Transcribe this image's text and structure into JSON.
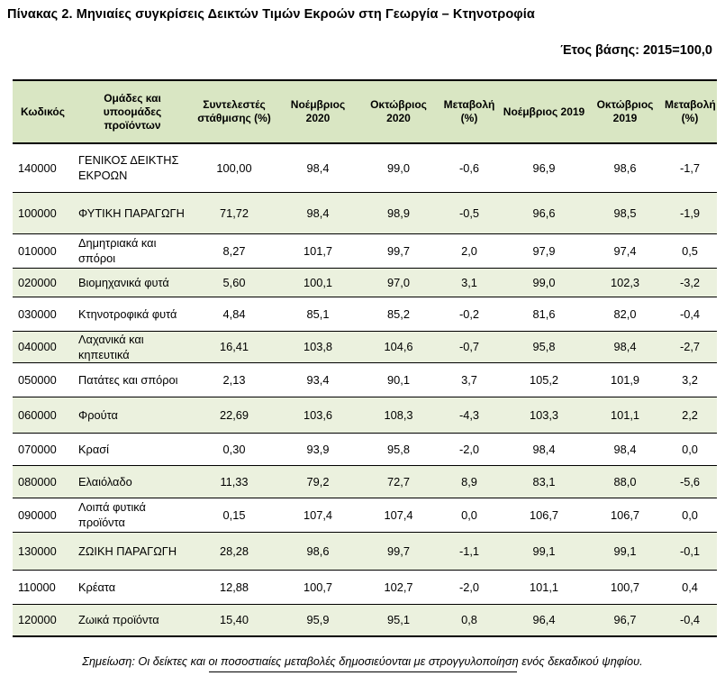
{
  "title": "Πίνακας 2. Μηνιαίες συγκρίσεις Δεικτών Τιμών Εκροών στη Γεωργία – Κτηνοτροφία",
  "base_year": "Έτος βάσης: 2015=100,0",
  "headers": {
    "code": "Κωδικός",
    "groups": "Ομάδες και υποομάδες προϊόντων",
    "weight": "Συντελεστές στάθμισης (%)",
    "nov2020": "Νοέμβριος 2020",
    "oct2020": "Οκτώβριος 2020",
    "change1": "Μεταβολή (%)",
    "nov2019": "Νοέμβριος 2019",
    "oct2019": "Οκτώβριος 2019",
    "change2": "Μεταβολή (%)"
  },
  "rows": [
    {
      "code": "140000",
      "name": "ΓΕΝΙΚΟΣ ΔΕΙΚΤΗΣ ΕΚΡΟΩΝ",
      "weight": "100,00",
      "nov2020": "98,4",
      "oct2020": "99,0",
      "chg1": "-0,6",
      "nov2019": "96,9",
      "oct2019": "98,6",
      "chg2": "-1,7"
    },
    {
      "code": "100000",
      "name": "ΦΥΤΙΚΗ ΠΑΡΑΓΩΓΗ",
      "weight": "71,72",
      "nov2020": "98,4",
      "oct2020": "98,9",
      "chg1": "-0,5",
      "nov2019": "96,6",
      "oct2019": "98,5",
      "chg2": "-1,9"
    },
    {
      "code": "010000",
      "name": "Δημητριακά και σπόροι",
      "weight": "8,27",
      "nov2020": "101,7",
      "oct2020": "99,7",
      "chg1": "2,0",
      "nov2019": "97,9",
      "oct2019": "97,4",
      "chg2": "0,5"
    },
    {
      "code": "020000",
      "name": "Βιομηχανικά φυτά",
      "weight": "5,60",
      "nov2020": "100,1",
      "oct2020": "97,0",
      "chg1": "3,1",
      "nov2019": "99,0",
      "oct2019": "102,3",
      "chg2": "-3,2"
    },
    {
      "code": "030000",
      "name": "Κτηνοτροφικά φυτά",
      "weight": "4,84",
      "nov2020": "85,1",
      "oct2020": "85,2",
      "chg1": "-0,2",
      "nov2019": "81,6",
      "oct2019": "82,0",
      "chg2": "-0,4"
    },
    {
      "code": "040000",
      "name": "Λαχανικά και κηπευτικά",
      "weight": "16,41",
      "nov2020": "103,8",
      "oct2020": "104,6",
      "chg1": "-0,7",
      "nov2019": "95,8",
      "oct2019": "98,4",
      "chg2": "-2,7"
    },
    {
      "code": "050000",
      "name": "Πατάτες και σπόροι",
      "weight": "2,13",
      "nov2020": "93,4",
      "oct2020": "90,1",
      "chg1": "3,7",
      "nov2019": "105,2",
      "oct2019": "101,9",
      "chg2": "3,2"
    },
    {
      "code": "060000",
      "name": "Φρούτα",
      "weight": "22,69",
      "nov2020": "103,6",
      "oct2020": "108,3",
      "chg1": "-4,3",
      "nov2019": "103,3",
      "oct2019": "101,1",
      "chg2": "2,2"
    },
    {
      "code": "070000",
      "name": "Κρασί",
      "weight": "0,30",
      "nov2020": "93,9",
      "oct2020": "95,8",
      "chg1": "-2,0",
      "nov2019": "98,4",
      "oct2019": "98,4",
      "chg2": "0,0"
    },
    {
      "code": "080000",
      "name": "Ελαιόλαδο",
      "weight": "11,33",
      "nov2020": "79,2",
      "oct2020": "72,7",
      "chg1": "8,9",
      "nov2019": "83,1",
      "oct2019": "88,0",
      "chg2": "-5,6"
    },
    {
      "code": "090000",
      "name": "Λοιπά φυτικά προϊόντα",
      "weight": "0,15",
      "nov2020": "107,4",
      "oct2020": "107,4",
      "chg1": "0,0",
      "nov2019": "106,7",
      "oct2019": "106,7",
      "chg2": "0,0"
    },
    {
      "code": "130000",
      "name": "ΖΩΙΚΗ ΠΑΡΑΓΩΓΗ",
      "weight": "28,28",
      "nov2020": "98,6",
      "oct2020": "99,7",
      "chg1": "-1,1",
      "nov2019": "99,1",
      "oct2019": "99,1",
      "chg2": "-0,1"
    },
    {
      "code": "110000",
      "name": "Κρέατα",
      "weight": "12,88",
      "nov2020": "100,7",
      "oct2020": "102,7",
      "chg1": "-2,0",
      "nov2019": "101,1",
      "oct2019": "100,7",
      "chg2": "0,4"
    },
    {
      "code": "120000",
      "name": "Ζωικά προϊόντα",
      "weight": "15,40",
      "nov2020": "95,9",
      "oct2020": "95,1",
      "chg1": "0,8",
      "nov2019": "96,4",
      "oct2019": "96,7",
      "chg2": "-0,4"
    }
  ],
  "note": "Σημείωση: Οι δείκτες και οι ποσοστιαίες μεταβολές δημοσιεύονται με στρογγυλοποίηση ενός δεκαδικού ψηφίου.",
  "colors": {
    "header_bg": "#d9e6c3",
    "row_shade": "#ebf1de"
  }
}
